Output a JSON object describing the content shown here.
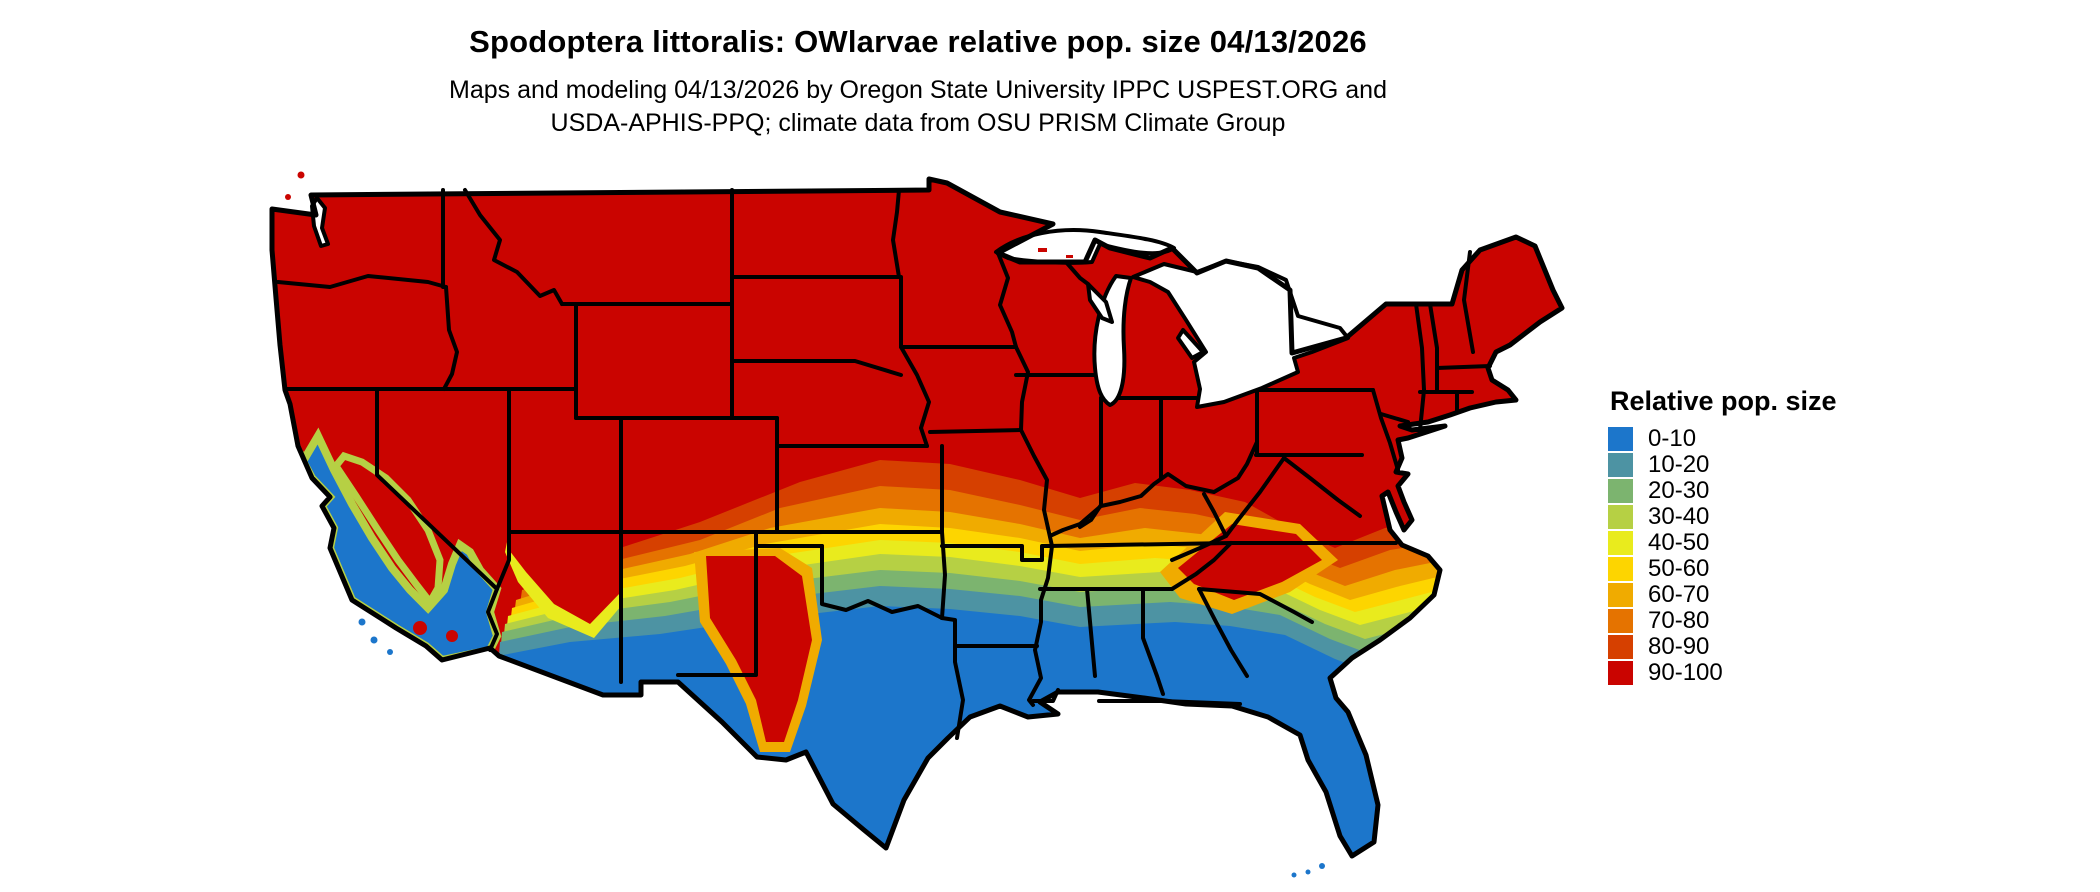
{
  "page": {
    "background": "#ffffff"
  },
  "header": {
    "title": "Spodoptera littoralis: OWlarvae relative pop. size 04/13/2026",
    "subtitle_line1": "Maps and modeling 04/13/2026 by Oregon State University IPPC USPEST.ORG and",
    "subtitle_line2": "USDA-APHIS-PPQ; climate data from OSU PRISM Climate Group"
  },
  "legend": {
    "title": "Relative pop. size",
    "items": [
      {
        "label": "0-10",
        "color": "#1c76cb"
      },
      {
        "label": "10-20",
        "color": "#4d93a3"
      },
      {
        "label": "20-30",
        "color": "#7cb46f"
      },
      {
        "label": "30-40",
        "color": "#b6d044"
      },
      {
        "label": "40-50",
        "color": "#e9eb1d"
      },
      {
        "label": "50-60",
        "color": "#fdd500"
      },
      {
        "label": "60-70",
        "color": "#f0ab00"
      },
      {
        "label": "70-80",
        "color": "#e57300"
      },
      {
        "label": "80-90",
        "color": "#d64000"
      },
      {
        "label": "90-100",
        "color": "#ca0400"
      }
    ]
  },
  "map": {
    "region": "Continental United States",
    "border_color": "#000000",
    "water_color": "#ffffff",
    "pattern": "Northern states solid 90-100 (red); banded west-to-east transition across the central latitudes through 80-90, 70-80, 60-70, 50-60, 40-50, 30-40, 20-30 and 10-20; southern states and most of California, southwest Arizona, south Texas, the Gulf coast and Florida 0-10 (blue); high-elevation Sierra Nevada, central New Mexico and southern Appalachians remain 90-100."
  }
}
